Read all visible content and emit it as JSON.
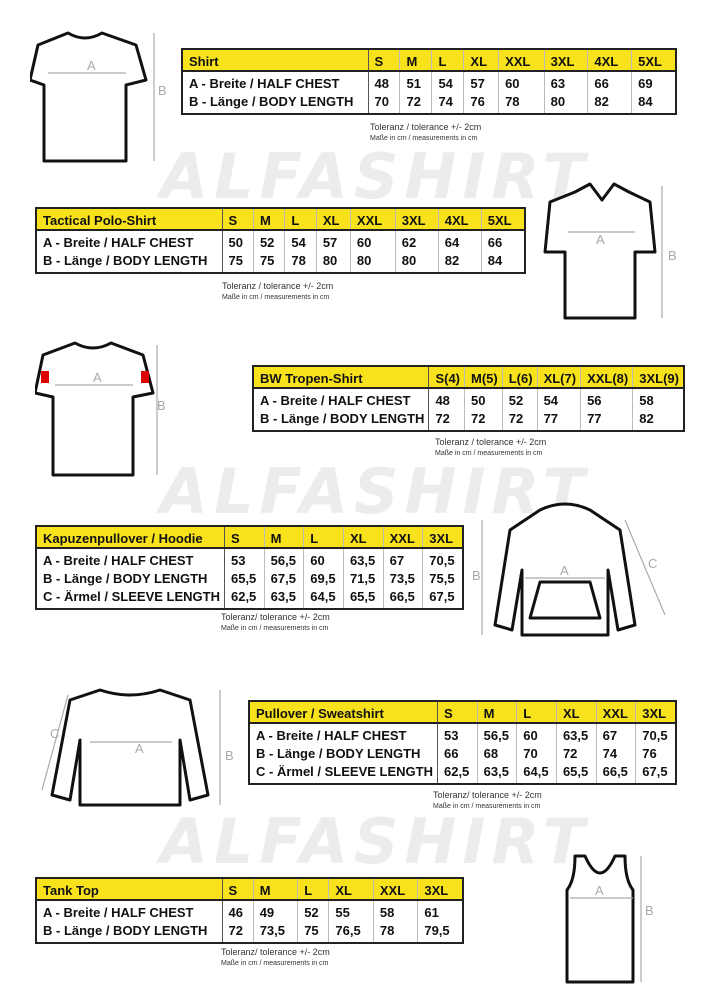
{
  "watermark": "ALFASHIRT",
  "tolerance_a": "Toleranz / tolerance +/- 2cm",
  "tolerance_b": "Toleranz/ tolerance +/- 2cm",
  "measure_note": "Maße in cm / measurements in cm",
  "dim_labels": {
    "a": "A",
    "b": "B",
    "c": "C"
  },
  "tables": [
    {
      "title": "Shirt",
      "sizes": [
        "S",
        "M",
        "L",
        "XL",
        "XXL",
        "3XL",
        "4XL",
        "5XL"
      ],
      "rows": [
        {
          "label": "A -  Breite / HALF CHEST",
          "values": [
            "48",
            "51",
            "54",
            "57",
            "60",
            "63",
            "66",
            "69"
          ]
        },
        {
          "label": "B -  Länge / BODY LENGTH",
          "values": [
            "70",
            "72",
            "74",
            "76",
            "78",
            "80",
            "82",
            "84"
          ]
        }
      ],
      "tolerance": "Toleranz / tolerance +/- 2cm"
    },
    {
      "title": "Tactical Polo-Shirt",
      "sizes": [
        "S",
        "M",
        "L",
        "XL",
        "XXL",
        "3XL",
        "4XL",
        "5XL"
      ],
      "rows": [
        {
          "label": "A -  Breite / HALF CHEST",
          "values": [
            "50",
            "52",
            "54",
            "57",
            "60",
            "62",
            "64",
            "66"
          ]
        },
        {
          "label": "B -  Länge / BODY LENGTH",
          "values": [
            "75",
            "75",
            "78",
            "80",
            "80",
            "80",
            "82",
            "84"
          ]
        }
      ],
      "tolerance": "Toleranz / tolerance +/- 2cm"
    },
    {
      "title": "BW Tropen-Shirt",
      "sizes": [
        "S(4)",
        "M(5)",
        "L(6)",
        "XL(7)",
        "XXL(8)",
        "3XL(9)"
      ],
      "rows": [
        {
          "label": "A -  Breite / HALF CHEST",
          "values": [
            "48",
            "50",
            "52",
            "54",
            "56",
            "58"
          ]
        },
        {
          "label": "B -  Länge / BODY LENGTH",
          "values": [
            "72",
            "72",
            "72",
            "77",
            "77",
            "82"
          ]
        }
      ],
      "tolerance": "Toleranz / tolerance +/- 2cm"
    },
    {
      "title": "Kapuzenpullover / Hoodie",
      "sizes": [
        "S",
        "M",
        "L",
        "XL",
        "XXL",
        "3XL"
      ],
      "rows": [
        {
          "label": "A -  Breite / HALF CHEST",
          "values": [
            "53",
            "56,5",
            "60",
            "63,5",
            "67",
            "70,5"
          ]
        },
        {
          "label": "B -  Länge / BODY LENGTH",
          "values": [
            "65,5",
            "67,5",
            "69,5",
            "71,5",
            "73,5",
            "75,5"
          ]
        },
        {
          "label": "C -  Ärmel / SLEEVE LENGTH",
          "values": [
            "62,5",
            "63,5",
            "64,5",
            "65,5",
            "66,5",
            "67,5"
          ]
        }
      ],
      "tolerance": "Toleranz/ tolerance +/- 2cm"
    },
    {
      "title": "Pullover / Sweatshirt",
      "sizes": [
        "S",
        "M",
        "L",
        "XL",
        "XXL",
        "3XL"
      ],
      "rows": [
        {
          "label": "A -  Breite / HALF CHEST",
          "values": [
            "53",
            "56,5",
            "60",
            "63,5",
            "67",
            "70,5"
          ]
        },
        {
          "label": "B -  Länge / BODY LENGTH",
          "values": [
            "66",
            "68",
            "70",
            "72",
            "74",
            "76"
          ]
        },
        {
          "label": "C -  Ärmel / SLEEVE LENGTH",
          "values": [
            "62,5",
            "63,5",
            "64,5",
            "65,5",
            "66,5",
            "67,5"
          ]
        }
      ],
      "tolerance": "Toleranz/ tolerance +/- 2cm"
    },
    {
      "title": "Tank Top",
      "sizes": [
        "S",
        "M",
        "L",
        "XL",
        "XXL",
        "3XL"
      ],
      "rows": [
        {
          "label": "A -  Breite / HALF CHEST",
          "values": [
            "46",
            "49",
            "52",
            "55",
            "58",
            "61"
          ]
        },
        {
          "label": "B -  Länge / BODY LENGTH",
          "values": [
            "72",
            "73,5",
            "75",
            "76,5",
            "78",
            "79,5"
          ]
        }
      ],
      "tolerance": "Toleranz/ tolerance +/- 2cm"
    }
  ],
  "colors": {
    "header": "#f8e21c",
    "border": "#222222",
    "watermark": "#ececec"
  }
}
